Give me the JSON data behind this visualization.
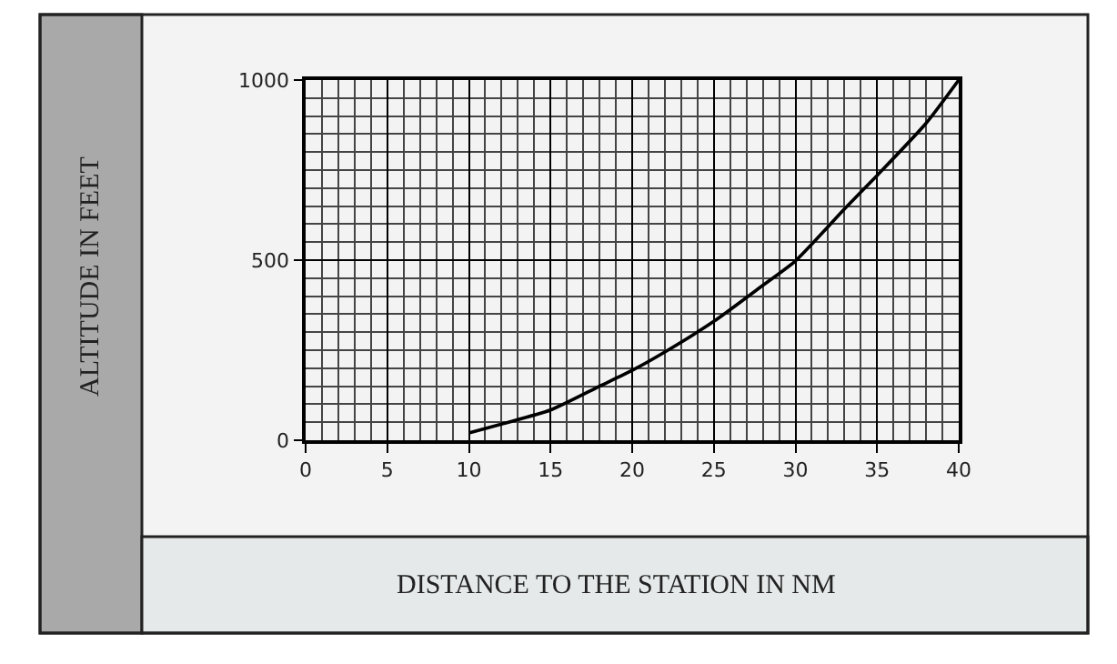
{
  "chart_data": {
    "type": "line",
    "xlabel": "DISTANCE TO THE STATION IN NM",
    "ylabel": "ALTITUDE IN FEET",
    "x": [
      10,
      12,
      15,
      18,
      20,
      22,
      25,
      28,
      30,
      33,
      35,
      38,
      40
    ],
    "series": [
      {
        "color": "#000000",
        "values": [
          20,
          45,
          84,
          150,
          194,
          245,
          330,
          430,
          498,
          642,
          735,
          880,
          1000
        ]
      }
    ],
    "xlim": [
      0,
      40
    ],
    "xticks": [
      0,
      5,
      10,
      15,
      20,
      25,
      30,
      35,
      40
    ],
    "ylim": [
      0,
      1000
    ],
    "yticks": [
      0,
      500,
      1000
    ],
    "grid": true,
    "marker": "none",
    "line_style": "solid"
  }
}
